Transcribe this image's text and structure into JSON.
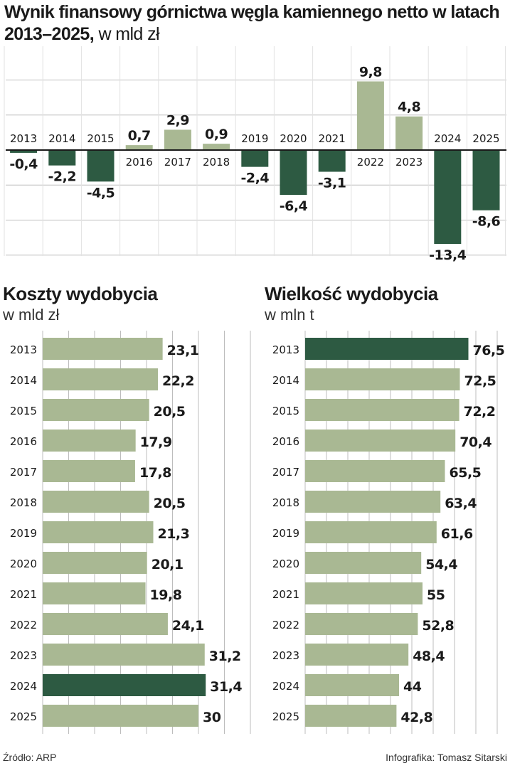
{
  "title": {
    "main": "Wynik finansowy górnictwa węgla kamiennego netto w latach 2013–2025,",
    "unit": "w mld zł"
  },
  "colors": {
    "light": "#a9b893",
    "dark": "#2d5a42",
    "grid": "#bdbdbd",
    "axis": "#1a1a1a"
  },
  "source": "Źródło: ARP",
  "credit": "Infografika: Tomasz Sitarski",
  "chart_data": [
    {
      "type": "bar",
      "title": "Wynik finansowy górnictwa węgla kamiennego netto w latach 2013–2025",
      "ylabel": "w mld zł",
      "categories": [
        "2013",
        "2014",
        "2015",
        "2016",
        "2017",
        "2018",
        "2019",
        "2020",
        "2021",
        "2022",
        "2023",
        "2024",
        "2025"
      ],
      "values": [
        -0.4,
        -2.2,
        -4.5,
        0.7,
        2.9,
        0.9,
        -2.4,
        -6.4,
        -3.1,
        9.8,
        4.8,
        -13.4,
        -8.6
      ],
      "value_labels": [
        "-0,4",
        "-2,2",
        "-4,5",
        "0,7",
        "2,9",
        "0,9",
        "-2,4",
        "-6,4",
        "-3,1",
        "9,8",
        "4,8",
        "-13,4",
        "-8,6"
      ],
      "ylim": [
        -14.5,
        11
      ],
      "grid": true,
      "colors": [
        "dark",
        "dark",
        "dark",
        "light",
        "light",
        "light",
        "dark",
        "dark",
        "dark",
        "light",
        "light",
        "dark",
        "dark"
      ]
    },
    {
      "type": "bar",
      "orientation": "horizontal",
      "title": "Koszty wydobycia",
      "xlabel": "w mld zł",
      "categories": [
        "2013",
        "2014",
        "2015",
        "2016",
        "2017",
        "2018",
        "2019",
        "2020",
        "2021",
        "2022",
        "2023",
        "2024",
        "2025"
      ],
      "values": [
        23.1,
        22.2,
        20.5,
        17.9,
        17.8,
        20.5,
        21.3,
        20.1,
        19.8,
        24.1,
        31.2,
        31.4,
        30
      ],
      "value_labels": [
        "23,1",
        "22,2",
        "20,5",
        "17,9",
        "17,8",
        "20,5",
        "21,3",
        "20,1",
        "19,8",
        "24,1",
        "31,2",
        "31,4",
        "30"
      ],
      "highlight": "2024",
      "grid": true
    },
    {
      "type": "bar",
      "orientation": "horizontal",
      "title": "Wielkość wydobycia",
      "xlabel": "w mln t",
      "categories": [
        "2013",
        "2014",
        "2015",
        "2016",
        "2017",
        "2018",
        "2019",
        "2020",
        "2021",
        "2022",
        "2023",
        "2024",
        "2025"
      ],
      "values": [
        76.5,
        72.5,
        72.2,
        70.4,
        65.5,
        63.4,
        61.6,
        54.4,
        55,
        52.8,
        48.4,
        44,
        42.8
      ],
      "value_labels": [
        "76,5",
        "72,5",
        "72,2",
        "70,4",
        "65,5",
        "63,4",
        "61,6",
        "54,4",
        "55",
        "52,8",
        "48,4",
        "44",
        "42,8"
      ],
      "highlight": "2013",
      "grid": true
    }
  ]
}
